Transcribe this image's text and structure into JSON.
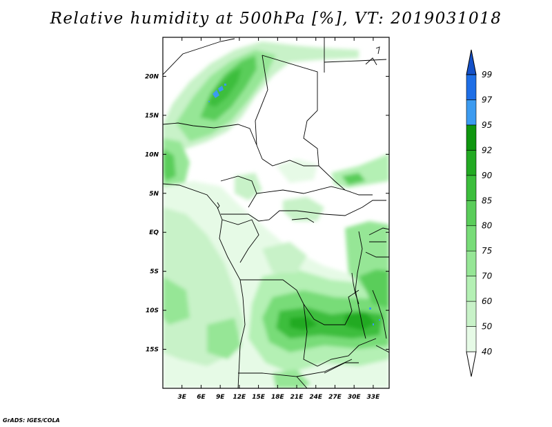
{
  "title": "Relative humidity at 500hPa [%], VT: 2019031018",
  "credit": "GrADS: IGES/COLA",
  "map": {
    "lon_range": [
      0,
      35.5
    ],
    "lat_range": [
      -20,
      25
    ],
    "lon_ticks": [
      "3E",
      "6E",
      "9E",
      "12E",
      "15E",
      "18E",
      "21E",
      "24E",
      "27E",
      "30E",
      "33E"
    ],
    "lat_ticks": [
      "20N",
      "15N",
      "10N",
      "5N",
      "EQ",
      "5S",
      "10S",
      "15S"
    ]
  },
  "colorbar": {
    "labels": [
      "40",
      "50",
      "60",
      "70",
      "75",
      "80",
      "85",
      "90",
      "92",
      "95",
      "97",
      "99"
    ],
    "colors": [
      "#ffffff",
      "#e6fae6",
      "#c8f2c8",
      "#b4f0b4",
      "#96e696",
      "#78dc78",
      "#5acd5a",
      "#3cbe3c",
      "#23aa23",
      "#0f960f",
      "#3c9bf0",
      "#1e6ee6",
      "#1450c8"
    ]
  }
}
